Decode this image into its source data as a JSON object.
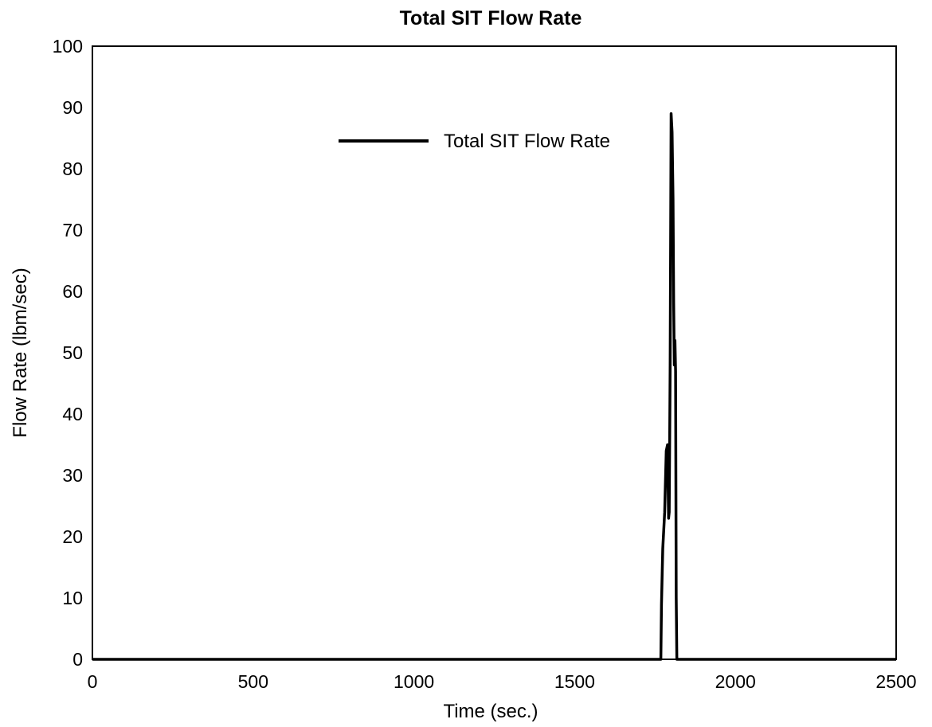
{
  "chart_data": {
    "type": "line",
    "title": "Total SIT Flow Rate",
    "xlabel": "Time (sec.)",
    "ylabel": "Flow Rate (lbm/sec)",
    "xlim": [
      0,
      2500
    ],
    "ylim": [
      0,
      100
    ],
    "xticks": [
      "0",
      "500",
      "1000",
      "1500",
      "2000",
      "2500"
    ],
    "yticks": [
      "0",
      "10",
      "20",
      "30",
      "40",
      "50",
      "60",
      "70",
      "80",
      "90",
      "100"
    ],
    "grid": false,
    "legend_position": "top-center",
    "series": [
      {
        "name": "Total SIT Flow Rate",
        "color": "#000000",
        "x": [
          0,
          1768,
          1770,
          1774,
          1780,
          1785,
          1789,
          1792,
          1794,
          1797,
          1800,
          1803,
          1806,
          1808,
          1810,
          1812,
          1814,
          1816,
          1818,
          1822,
          2500
        ],
        "y": [
          0,
          0,
          9,
          18,
          24,
          34,
          35,
          23,
          24,
          48,
          89,
          86,
          75,
          58,
          48,
          52,
          47,
          10,
          0,
          0,
          0
        ]
      }
    ]
  }
}
